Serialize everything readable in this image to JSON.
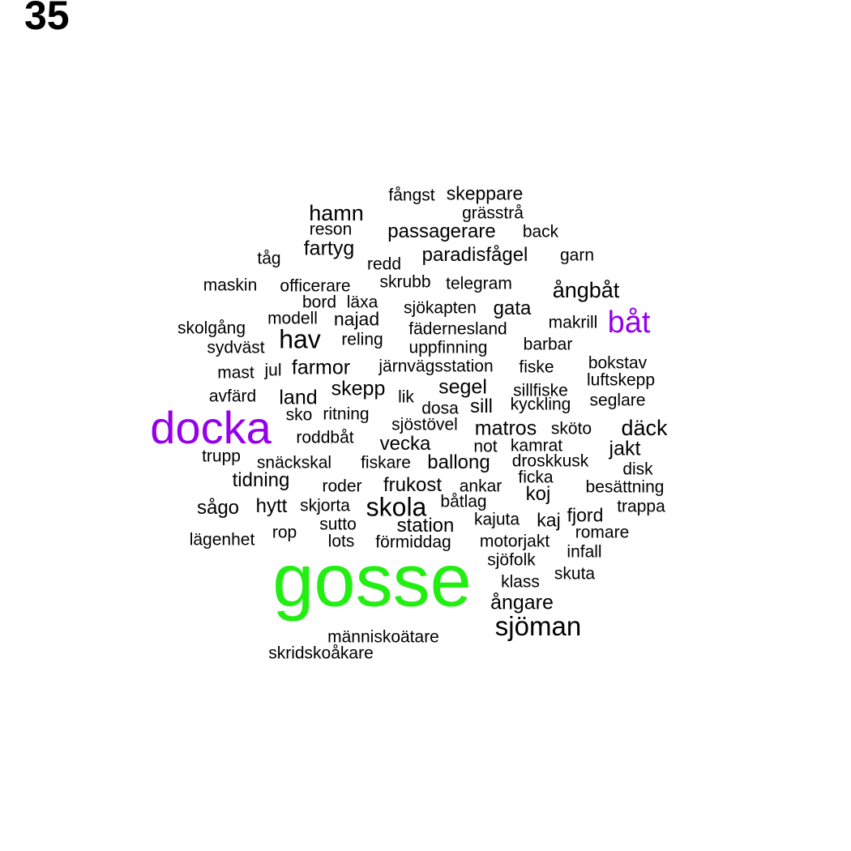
{
  "page_number": "35",
  "colors": {
    "text": "#000000",
    "highlight_purple": "#9400ee",
    "highlight_green": "#22ee11"
  },
  "words": [
    {
      "text": "fångst",
      "weight": 1,
      "color": "#000000"
    },
    {
      "text": "skeppare",
      "weight": 1,
      "color": "#000000"
    },
    {
      "text": "hamn",
      "weight": 2,
      "color": "#000000"
    },
    {
      "text": "grässtrå",
      "weight": 1,
      "color": "#000000"
    },
    {
      "text": "reson",
      "weight": 1,
      "color": "#000000"
    },
    {
      "text": "passagerare",
      "weight": 2,
      "color": "#000000"
    },
    {
      "text": "back",
      "weight": 1,
      "color": "#000000"
    },
    {
      "text": "fartyg",
      "weight": 2,
      "color": "#000000"
    },
    {
      "text": "tåg",
      "weight": 1,
      "color": "#000000"
    },
    {
      "text": "redd",
      "weight": 1,
      "color": "#000000"
    },
    {
      "text": "paradisfågel",
      "weight": 2,
      "color": "#000000"
    },
    {
      "text": "garn",
      "weight": 1,
      "color": "#000000"
    },
    {
      "text": "maskin",
      "weight": 1,
      "color": "#000000"
    },
    {
      "text": "officerare",
      "weight": 1,
      "color": "#000000"
    },
    {
      "text": "skrubb",
      "weight": 1,
      "color": "#000000"
    },
    {
      "text": "telegram",
      "weight": 1,
      "color": "#000000"
    },
    {
      "text": "ångbåt",
      "weight": 2,
      "color": "#000000"
    },
    {
      "text": "bord",
      "weight": 1,
      "color": "#000000"
    },
    {
      "text": "läxa",
      "weight": 1,
      "color": "#000000"
    },
    {
      "text": "sjökapten",
      "weight": 1,
      "color": "#000000"
    },
    {
      "text": "gata",
      "weight": 2,
      "color": "#000000"
    },
    {
      "text": "båt",
      "weight": 3,
      "color": "#9400ee"
    },
    {
      "text": "modell",
      "weight": 1,
      "color": "#000000"
    },
    {
      "text": "najad",
      "weight": 2,
      "color": "#000000"
    },
    {
      "text": "makrill",
      "weight": 1,
      "color": "#000000"
    },
    {
      "text": "skolgång",
      "weight": 1,
      "color": "#000000"
    },
    {
      "text": "fädernesland",
      "weight": 1,
      "color": "#000000"
    },
    {
      "text": "hav",
      "weight": 3,
      "color": "#000000"
    },
    {
      "text": "reling",
      "weight": 1,
      "color": "#000000"
    },
    {
      "text": "sydväst",
      "weight": 1,
      "color": "#000000"
    },
    {
      "text": "uppfinning",
      "weight": 1,
      "color": "#000000"
    },
    {
      "text": "barbar",
      "weight": 1,
      "color": "#000000"
    },
    {
      "text": "bokstav",
      "weight": 1,
      "color": "#000000"
    },
    {
      "text": "mast",
      "weight": 1,
      "color": "#000000"
    },
    {
      "text": "jul",
      "weight": 1,
      "color": "#000000"
    },
    {
      "text": "farmor",
      "weight": 2,
      "color": "#000000"
    },
    {
      "text": "järnvägsstation",
      "weight": 1,
      "color": "#000000"
    },
    {
      "text": "fiske",
      "weight": 1,
      "color": "#000000"
    },
    {
      "text": "luftskepp",
      "weight": 1,
      "color": "#000000"
    },
    {
      "text": "skepp",
      "weight": 2,
      "color": "#000000"
    },
    {
      "text": "segel",
      "weight": 2,
      "color": "#000000"
    },
    {
      "text": "sillfiske",
      "weight": 1,
      "color": "#000000"
    },
    {
      "text": "avfärd",
      "weight": 1,
      "color": "#000000"
    },
    {
      "text": "land",
      "weight": 2,
      "color": "#000000"
    },
    {
      "text": "lik",
      "weight": 1,
      "color": "#000000"
    },
    {
      "text": "seglare",
      "weight": 1,
      "color": "#000000"
    },
    {
      "text": "kyckling",
      "weight": 1,
      "color": "#000000"
    },
    {
      "text": "dosa",
      "weight": 1,
      "color": "#000000"
    },
    {
      "text": "sill",
      "weight": 2,
      "color": "#000000"
    },
    {
      "text": "sko",
      "weight": 1,
      "color": "#000000"
    },
    {
      "text": "ritning",
      "weight": 1,
      "color": "#000000"
    },
    {
      "text": "docka",
      "weight": 5,
      "color": "#9400ee"
    },
    {
      "text": "sjöstövel",
      "weight": 1,
      "color": "#000000"
    },
    {
      "text": "matros",
      "weight": 2,
      "color": "#000000"
    },
    {
      "text": "sköto",
      "weight": 1,
      "color": "#000000"
    },
    {
      "text": "däck",
      "weight": 2,
      "color": "#000000"
    },
    {
      "text": "roddbåt",
      "weight": 1,
      "color": "#000000"
    },
    {
      "text": "vecka",
      "weight": 2,
      "color": "#000000"
    },
    {
      "text": "not",
      "weight": 1,
      "color": "#000000"
    },
    {
      "text": "kamrat",
      "weight": 1,
      "color": "#000000"
    },
    {
      "text": "jakt",
      "weight": 2,
      "color": "#000000"
    },
    {
      "text": "trupp",
      "weight": 1,
      "color": "#000000"
    },
    {
      "text": "snäckskal",
      "weight": 1,
      "color": "#000000"
    },
    {
      "text": "fiskare",
      "weight": 1,
      "color": "#000000"
    },
    {
      "text": "ballong",
      "weight": 2,
      "color": "#000000"
    },
    {
      "text": "droskkusk",
      "weight": 1,
      "color": "#000000"
    },
    {
      "text": "disk",
      "weight": 1,
      "color": "#000000"
    },
    {
      "text": "tidning",
      "weight": 2,
      "color": "#000000"
    },
    {
      "text": "ficka",
      "weight": 1,
      "color": "#000000"
    },
    {
      "text": "roder",
      "weight": 1,
      "color": "#000000"
    },
    {
      "text": "frukost",
      "weight": 2,
      "color": "#000000"
    },
    {
      "text": "ankar",
      "weight": 1,
      "color": "#000000"
    },
    {
      "text": "besättning",
      "weight": 1,
      "color": "#000000"
    },
    {
      "text": "koj",
      "weight": 2,
      "color": "#000000"
    },
    {
      "text": "sågo",
      "weight": 2,
      "color": "#000000"
    },
    {
      "text": "hytt",
      "weight": 2,
      "color": "#000000"
    },
    {
      "text": "skjorta",
      "weight": 1,
      "color": "#000000"
    },
    {
      "text": "skola",
      "weight": 3,
      "color": "#000000"
    },
    {
      "text": "båtlag",
      "weight": 1,
      "color": "#000000"
    },
    {
      "text": "trappa",
      "weight": 1,
      "color": "#000000"
    },
    {
      "text": "fjord",
      "weight": 2,
      "color": "#000000"
    },
    {
      "text": "kajuta",
      "weight": 1,
      "color": "#000000"
    },
    {
      "text": "kaj",
      "weight": 2,
      "color": "#000000"
    },
    {
      "text": "sutto",
      "weight": 1,
      "color": "#000000"
    },
    {
      "text": "station",
      "weight": 2,
      "color": "#000000"
    },
    {
      "text": "romare",
      "weight": 1,
      "color": "#000000"
    },
    {
      "text": "rop",
      "weight": 1,
      "color": "#000000"
    },
    {
      "text": "lägenhet",
      "weight": 1,
      "color": "#000000"
    },
    {
      "text": "lots",
      "weight": 1,
      "color": "#000000"
    },
    {
      "text": "förmiddag",
      "weight": 1,
      "color": "#000000"
    },
    {
      "text": "motorjakt",
      "weight": 1,
      "color": "#000000"
    },
    {
      "text": "infall",
      "weight": 1,
      "color": "#000000"
    },
    {
      "text": "sjöfolk",
      "weight": 1,
      "color": "#000000"
    },
    {
      "text": "gosse",
      "weight": 8,
      "color": "#22ee11"
    },
    {
      "text": "skuta",
      "weight": 1,
      "color": "#000000"
    },
    {
      "text": "klass",
      "weight": 1,
      "color": "#000000"
    },
    {
      "text": "ångare",
      "weight": 2,
      "color": "#000000"
    },
    {
      "text": "sjöman",
      "weight": 3,
      "color": "#000000"
    },
    {
      "text": "människoätare",
      "weight": 1,
      "color": "#000000"
    },
    {
      "text": "skridskoåkare",
      "weight": 1,
      "color": "#000000"
    }
  ]
}
